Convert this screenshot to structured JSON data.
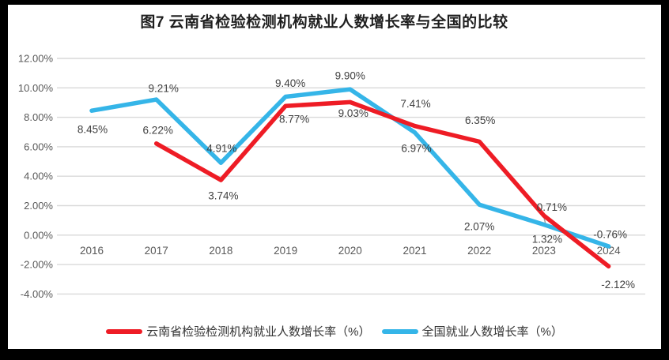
{
  "title": "图7  云南省检验检测机构就业人数增长率与全国的比较",
  "colors": {
    "yunnan_line": "#EE1C25",
    "national_line": "#35B5E8",
    "gridline": "#D9D9D9",
    "axis_text": "#595959",
    "data_label_text": "#3F3F3F",
    "leader_line": "#A0A0A0",
    "frame_background": "#000000",
    "chart_background": "#FFFFFF"
  },
  "chart_data": {
    "type": "line",
    "title": "图7  云南省检验检测机构就业人数增长率与全国的比较",
    "categories": [
      "2016",
      "2017",
      "2018",
      "2019",
      "2020",
      "2021",
      "2022",
      "2023",
      "2024"
    ],
    "series": [
      {
        "name": "云南省检验检测机构就业人数增长率（%）",
        "color_key": "yunnan_line",
        "values": [
          null,
          6.22,
          3.74,
          8.77,
          9.03,
          7.41,
          6.35,
          1.32,
          -2.12
        ],
        "point_labels": [
          "",
          "6.22%",
          "3.74%",
          "8.77%",
          "9.03%",
          "7.41%",
          "6.35%",
          "1.32%",
          "-2.12%"
        ],
        "label_offsets": [
          [
            0,
            0
          ],
          [
            2,
            -17
          ],
          [
            3,
            20
          ],
          [
            11,
            17
          ],
          [
            4,
            14
          ],
          [
            1,
            -28
          ],
          [
            1,
            -27
          ],
          [
            4,
            30
          ],
          [
            12,
            23
          ]
        ]
      },
      {
        "name": "全国就业人数增长率（%）",
        "color_key": "national_line",
        "values": [
          8.45,
          9.21,
          4.91,
          9.4,
          9.9,
          6.97,
          2.07,
          0.71,
          -0.76
        ],
        "point_labels": [
          "8.45%",
          "9.21%",
          "4.91%",
          "9.40%",
          "9.90%",
          "6.97%",
          "2.07%",
          "0.71%",
          "-0.76%"
        ],
        "label_offsets": [
          [
            1,
            24
          ],
          [
            9,
            -14
          ],
          [
            1,
            -18
          ],
          [
            6,
            -17
          ],
          [
            0,
            -17
          ],
          [
            2,
            20
          ],
          [
            0,
            28
          ],
          [
            10,
            -22
          ],
          [
            2,
            -15
          ]
        ]
      }
    ],
    "ylim": [
      -4,
      12
    ],
    "ytick_step": 2,
    "ytick_labels": [
      "12.00%",
      "10.00%",
      "8.00%",
      "6.00%",
      "4.00%",
      "2.00%",
      "0.00%",
      "-2.00%",
      "-4.00%"
    ],
    "xlabel": "",
    "ylabel": "",
    "grid": true,
    "legend_position": "bottom",
    "annotations": {
      "leader_line": {
        "series_index": 1,
        "point_index": 7
      }
    }
  }
}
